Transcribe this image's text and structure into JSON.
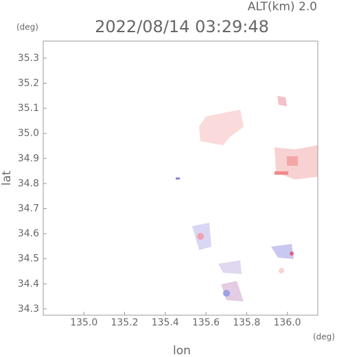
{
  "chart_data": {
    "type": "map",
    "title": "2022/08/14 03:29:48",
    "subtitle": "ALT(km) 2.0",
    "x_label": "lon",
    "y_label": "lat",
    "x_unit": "(deg)",
    "y_unit": "(deg)",
    "xlim": [
      134.8,
      136.15
    ],
    "ylim": [
      34.275,
      35.368
    ],
    "xticks": [
      {
        "value": 135.0,
        "label": "135.0"
      },
      135.2,
      135.4,
      135.6,
      135.8,
      {
        "value": 136.0,
        "label": "136.0"
      }
    ],
    "yticks": [
      35.3,
      35.2,
      35.1,
      {
        "value": 35.0,
        "label": "35.0"
      },
      34.9,
      34.8,
      34.7,
      34.6,
      34.5,
      34.4,
      34.3
    ]
  }
}
